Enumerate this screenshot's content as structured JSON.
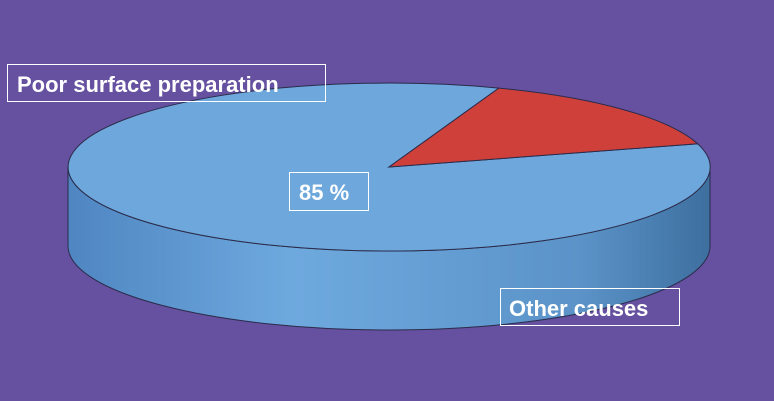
{
  "chart_data": {
    "type": "pie",
    "slices": [
      {
        "label": "Poor surface preparation",
        "value": 85,
        "value_label": "85 %",
        "color": "#6ea7db"
      },
      {
        "label": "Other causes",
        "value": 15,
        "color": "#d0403b"
      }
    ]
  },
  "colors": {
    "background": "#6551a0",
    "label_text": "#ffffff"
  }
}
